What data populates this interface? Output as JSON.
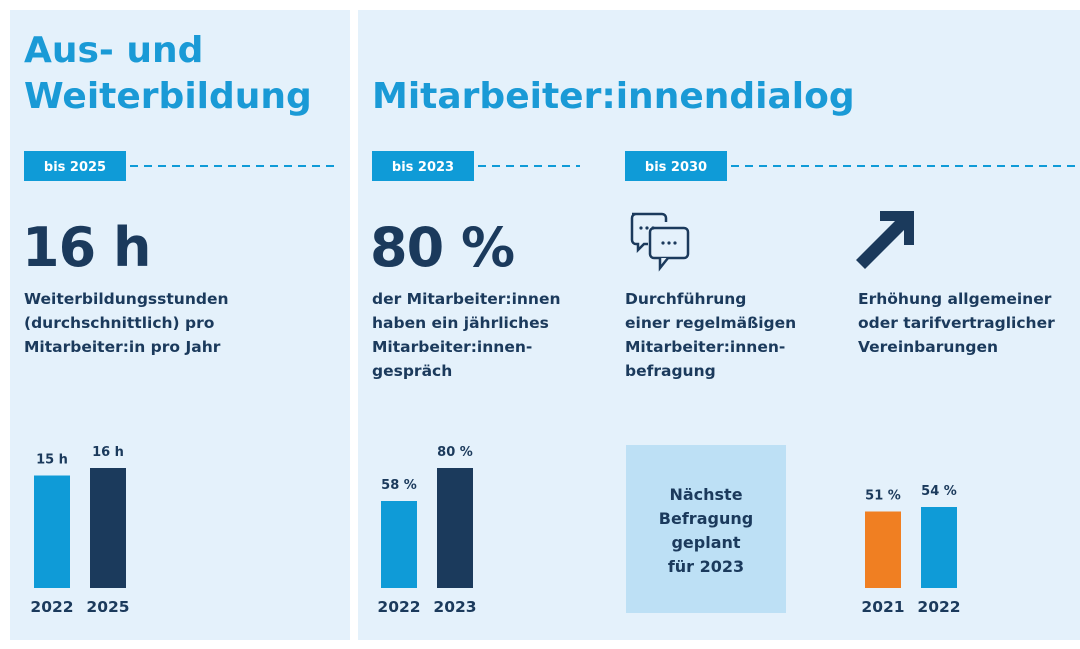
{
  "sections": [
    {
      "title": [
        "Aus- und",
        "Weiterbildung"
      ],
      "target": "bis 2025",
      "headline": "16 h",
      "description": [
        "Weiterbildungsstunden",
        "(durchschnittlich) pro",
        "Mitarbeiter:in pro Jahr"
      ]
    },
    {
      "title": "Mitarbeiter:innendialog",
      "columns": [
        {
          "target": "bis 2023",
          "headline": "80 %",
          "description": [
            "der Mitarbeiter:innen",
            "haben ein jährliches",
            "Mitarbeiter:innen-",
            "gespräch"
          ]
        },
        {
          "target": "bis 2030",
          "description": [
            "Durchführung",
            "einer regelmäßigen",
            "Mitarbeiter:innen-",
            "befragung"
          ],
          "note": [
            "Nächste",
            "Befragung",
            "geplant",
            "für 2023"
          ]
        },
        {
          "description": [
            "Erhöhung allgemeiner",
            "oder tarifvertraglicher",
            "Vereinbarungen"
          ]
        }
      ]
    }
  ],
  "chart_data": [
    {
      "type": "bar",
      "categories": [
        "2022",
        "2025"
      ],
      "values": [
        15,
        16
      ],
      "value_labels": [
        "15 h",
        "16 h"
      ],
      "colors": [
        "#0f9bd7",
        "#1b3a5c"
      ],
      "ylim": [
        0,
        20
      ]
    },
    {
      "type": "bar",
      "categories": [
        "2022",
        "2023"
      ],
      "values": [
        58,
        80
      ],
      "value_labels": [
        "58 %",
        "80 %"
      ],
      "colors": [
        "#0f9bd7",
        "#1b3a5c"
      ],
      "ylim": [
        0,
        100
      ]
    },
    {
      "type": "bar",
      "categories": [
        "2021",
        "2022"
      ],
      "values": [
        51,
        54
      ],
      "value_labels": [
        "51 %",
        "54 %"
      ],
      "colors": [
        "#f07f22",
        "#0f9bd7"
      ],
      "ylim": [
        0,
        100
      ]
    }
  ]
}
